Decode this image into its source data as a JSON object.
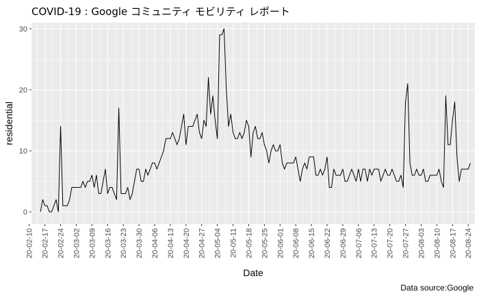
{
  "chart_data": {
    "type": "line",
    "title": "COVID-19 : Google コミュニティ モビリティ レポート",
    "xlabel": "Date",
    "ylabel": "residential",
    "caption": "Data source:Google",
    "ylim": [
      -2,
      31
    ],
    "yticks": [
      0,
      10,
      20,
      30
    ],
    "xlim": [
      "2020-02-11",
      "2020-08-27"
    ],
    "xticks": [
      {
        "date": "2020-02-10",
        "label": "20-02-10"
      },
      {
        "date": "2020-02-17",
        "label": "20-02-17"
      },
      {
        "date": "2020-02-24",
        "label": "20-02-24"
      },
      {
        "date": "2020-03-02",
        "label": "20-03-02"
      },
      {
        "date": "2020-03-09",
        "label": "20-03-09"
      },
      {
        "date": "2020-03-16",
        "label": "20-03-16"
      },
      {
        "date": "2020-03-23",
        "label": "20-03-23"
      },
      {
        "date": "2020-03-30",
        "label": "20-03-30"
      },
      {
        "date": "2020-04-06",
        "label": "20-04-06"
      },
      {
        "date": "2020-04-13",
        "label": "20-04-13"
      },
      {
        "date": "2020-04-20",
        "label": "20-04-20"
      },
      {
        "date": "2020-04-27",
        "label": "20-04-27"
      },
      {
        "date": "2020-05-04",
        "label": "20-05-04"
      },
      {
        "date": "2020-05-11",
        "label": "20-05-11"
      },
      {
        "date": "2020-05-18",
        "label": "20-05-18"
      },
      {
        "date": "2020-05-25",
        "label": "20-05-25"
      },
      {
        "date": "2020-06-01",
        "label": "20-06-01"
      },
      {
        "date": "2020-06-08",
        "label": "20-06-08"
      },
      {
        "date": "2020-06-15",
        "label": "20-06-15"
      },
      {
        "date": "2020-06-22",
        "label": "20-06-22"
      },
      {
        "date": "2020-06-29",
        "label": "20-06-29"
      },
      {
        "date": "2020-07-06",
        "label": "20-07-06"
      },
      {
        "date": "2020-07-13",
        "label": "20-07-13"
      },
      {
        "date": "2020-07-20",
        "label": "20-07-20"
      },
      {
        "date": "2020-07-27",
        "label": "20-07-27"
      },
      {
        "date": "2020-08-03",
        "label": "20-08-03"
      },
      {
        "date": "2020-08-10",
        "label": "20-08-10"
      },
      {
        "date": "2020-08-17",
        "label": "20-08-17"
      },
      {
        "date": "2020-08-24",
        "label": "20-08-24"
      }
    ],
    "grid": true,
    "series": [
      {
        "color": "#000000",
        "x_start": "2020-02-15",
        "values": [
          0,
          2,
          1,
          1,
          0,
          0,
          1,
          2,
          0,
          14,
          1,
          1,
          1,
          2,
          4,
          4,
          4,
          4,
          4,
          5,
          4,
          5,
          5,
          6,
          4,
          6,
          3,
          3,
          5,
          7,
          3,
          4,
          4,
          3,
          2,
          17,
          3,
          3,
          3,
          4,
          2,
          3,
          5,
          7,
          7,
          5,
          5,
          7,
          6,
          7,
          8,
          8,
          7,
          8,
          9,
          10,
          12,
          12,
          12,
          13,
          12,
          11,
          12,
          14,
          16,
          11,
          14,
          14,
          14,
          15,
          16,
          13,
          12,
          15,
          14,
          22,
          16,
          19,
          15,
          12,
          29,
          29,
          30,
          20,
          14,
          16,
          13,
          12,
          12,
          13,
          12,
          13,
          15,
          14,
          9,
          13,
          14,
          12,
          12,
          13,
          11,
          10,
          8,
          10,
          11,
          10,
          10,
          11,
          8,
          7,
          8,
          8,
          8,
          8,
          9,
          7,
          5,
          7,
          8,
          7,
          9,
          9,
          9,
          6,
          6,
          7,
          6,
          7,
          9,
          4,
          4,
          7,
          6,
          6,
          6,
          7,
          5,
          5,
          6,
          7,
          6,
          5,
          7,
          5,
          7,
          7,
          5,
          7,
          6,
          7,
          7,
          7,
          5,
          6,
          7,
          6,
          6,
          7,
          6,
          5,
          5,
          6,
          4,
          18,
          21,
          8,
          6,
          6,
          7,
          6,
          6,
          7,
          5,
          5,
          6,
          6,
          6,
          6,
          7,
          5,
          4,
          19,
          11,
          11,
          15,
          18,
          9,
          5,
          7,
          7,
          7,
          7,
          8
        ]
      }
    ]
  }
}
